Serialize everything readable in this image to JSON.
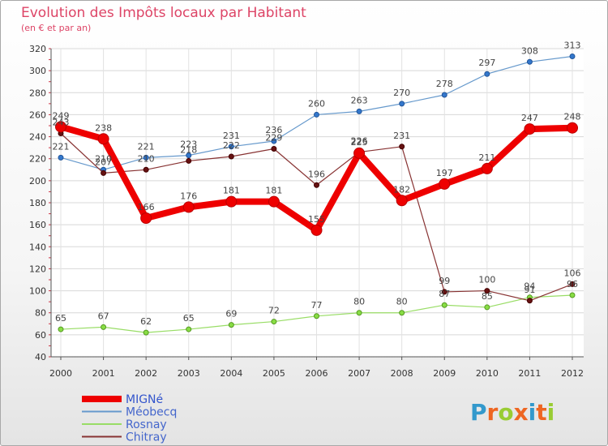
{
  "chart_data": {
    "type": "line",
    "title": "Evolution des Impôts locaux par Habitant",
    "subtitle": "(en € et par an)",
    "categories": [
      "2000",
      "2001",
      "2002",
      "2003",
      "2004",
      "2005",
      "2006",
      "2007",
      "2008",
      "2009",
      "2010",
      "2011",
      "2012"
    ],
    "ylim": [
      40,
      320
    ],
    "yticks": [
      40,
      60,
      80,
      100,
      120,
      140,
      160,
      180,
      200,
      220,
      240,
      260,
      280,
      300,
      320
    ],
    "grid": true,
    "series": [
      {
        "name": "MIGNé",
        "color": "#ee0000",
        "values": [
          249,
          238,
          166,
          176,
          181,
          181,
          155,
          225,
          182,
          197,
          211,
          247,
          248
        ]
      },
      {
        "name": "Méobecq",
        "color": "#6699cc",
        "values": [
          221,
          210,
          221,
          223,
          231,
          236,
          260,
          263,
          270,
          278,
          297,
          308,
          313
        ]
      },
      {
        "name": "Rosnay",
        "color": "#99dd66",
        "values": [
          65,
          67,
          62,
          65,
          69,
          72,
          77,
          80,
          80,
          87,
          85,
          94,
          96
        ]
      },
      {
        "name": "Chitray",
        "color": "#883333",
        "values": [
          243,
          207,
          210,
          218,
          222,
          229,
          196,
          226,
          231,
          99,
          100,
          91,
          106
        ]
      }
    ],
    "legend_position": "bottom-left"
  },
  "logo": {
    "letters": [
      "P",
      "r",
      "o",
      "x",
      "i",
      "t",
      "i"
    ],
    "colors": [
      "#3399cc",
      "#ee6622",
      "#99cc33",
      "#ee6622",
      "#3399cc",
      "#ee6622",
      "#99cc33"
    ]
  }
}
